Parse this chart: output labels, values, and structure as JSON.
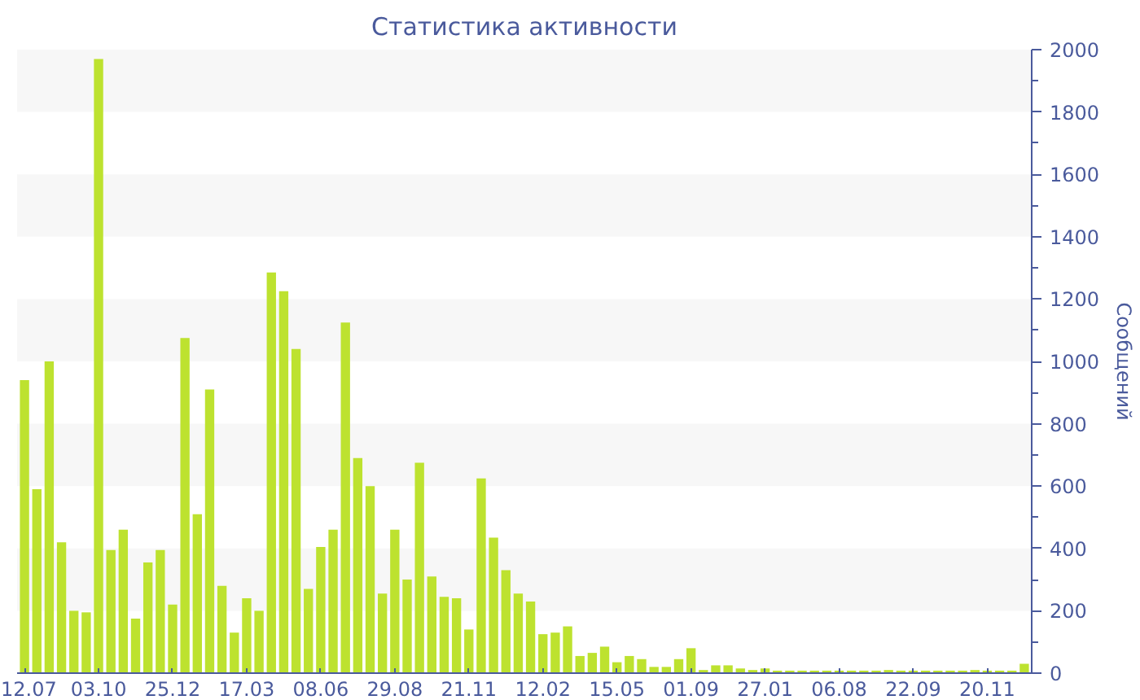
{
  "chart_data": {
    "type": "bar",
    "title": "Статистика активности",
    "ylabel": "Сообщений",
    "categories": [
      "12.07",
      null,
      null,
      null,
      null,
      null,
      "03.10",
      null,
      null,
      null,
      null,
      null,
      "25.12",
      null,
      null,
      null,
      null,
      null,
      "17.03",
      null,
      null,
      null,
      null,
      null,
      "08.06",
      null,
      null,
      null,
      null,
      null,
      "29.08",
      null,
      null,
      null,
      null,
      null,
      "21.11",
      null,
      null,
      null,
      null,
      null,
      "12.02",
      null,
      null,
      null,
      null,
      null,
      "15.05",
      null,
      null,
      null,
      null,
      null,
      "01.09",
      null,
      null,
      null,
      null,
      null,
      "27.01",
      null,
      null,
      null,
      null,
      null,
      "06.08",
      null,
      null,
      null,
      null,
      null,
      "22.09",
      null,
      null,
      null,
      null,
      null,
      "20.11",
      null,
      null,
      null
    ],
    "values": [
      940,
      590,
      1000,
      420,
      200,
      195,
      1970,
      395,
      460,
      175,
      355,
      395,
      220,
      1075,
      510,
      910,
      280,
      130,
      240,
      200,
      1285,
      1225,
      1040,
      270,
      405,
      460,
      1125,
      690,
      600,
      255,
      460,
      300,
      675,
      310,
      245,
      240,
      140,
      625,
      435,
      330,
      255,
      230,
      125,
      130,
      150,
      55,
      65,
      85,
      35,
      55,
      45,
      20,
      20,
      45,
      80,
      10,
      25,
      25,
      15,
      10,
      15,
      8,
      8,
      8,
      8,
      8,
      8,
      8,
      8,
      8,
      10,
      8,
      8,
      8,
      8,
      8,
      8,
      10,
      8,
      8,
      8,
      30
    ],
    "color": "#bde22f",
    "ylim": [
      0,
      2000
    ],
    "yticks": [
      0,
      200,
      400,
      600,
      800,
      1000,
      1200,
      1400,
      1600,
      1800,
      2000
    ]
  }
}
